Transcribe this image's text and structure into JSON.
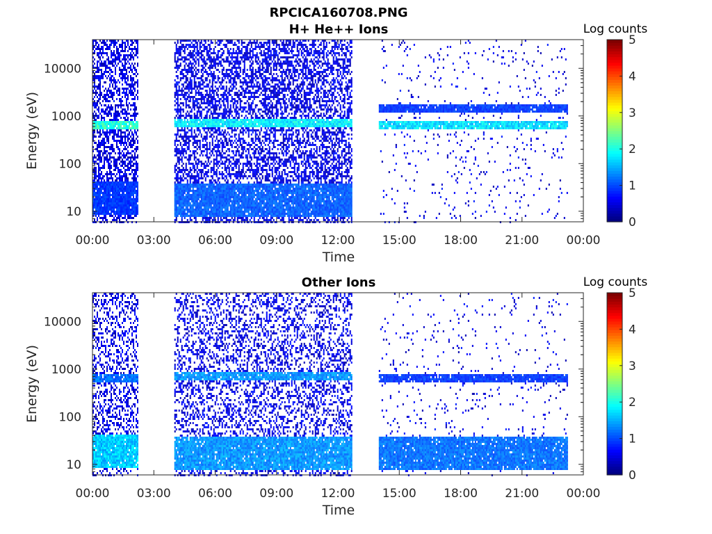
{
  "figure": {
    "title": "RPCICA160708.PNG"
  },
  "chart_data": [
    {
      "type": "heatmap",
      "title": "H+ He++ Ions",
      "xlabel": "Time",
      "ylabel": "Energy (eV)",
      "x_ticks": [
        "00:00",
        "03:00",
        "06:00",
        "09:00",
        "12:00",
        "15:00",
        "18:00",
        "21:00",
        "00:00"
      ],
      "x_range_hours": [
        0,
        24
      ],
      "y_scale": "log",
      "y_ticks": [
        {
          "value": 10,
          "label": "10"
        },
        {
          "value": 100,
          "label": "100"
        },
        {
          "value": 1000,
          "label": "1000"
        },
        {
          "value": 10000,
          "label": "10000"
        }
      ],
      "y_range": [
        6,
        40000
      ],
      "colorbar": {
        "label": "Log counts",
        "range": [
          0,
          5
        ],
        "ticks": [
          "0",
          "1",
          "2",
          "3",
          "4",
          "5"
        ],
        "colormap": "jet"
      },
      "data_intervals_hours": [
        [
          0.0,
          2.2
        ],
        [
          4.0,
          12.7
        ],
        [
          14.0,
          23.2
        ]
      ],
      "features": [
        {
          "from": 0.0,
          "to": 2.2,
          "energy_eV": 700,
          "log_counts": 2.3,
          "kind": "band"
        },
        {
          "from": 4.0,
          "to": 12.7,
          "energy_eV": 720,
          "log_counts": 2.0,
          "kind": "band"
        },
        {
          "from": 14.0,
          "to": 23.2,
          "energy_eV": 700,
          "log_counts": 1.9,
          "kind": "band"
        },
        {
          "from": 14.0,
          "to": 23.2,
          "energy_eV": 1500,
          "log_counts": 1.0,
          "kind": "band"
        },
        {
          "from": 0.0,
          "to": 2.2,
          "energy_eV": 20,
          "log_counts": 1.0,
          "kind": "low-energy"
        },
        {
          "from": 4.0,
          "to": 12.7,
          "energy_eV": 18,
          "log_counts": 1.2,
          "kind": "low-energy"
        }
      ]
    },
    {
      "type": "heatmap",
      "title": "Other Ions",
      "xlabel": "Time",
      "ylabel": "Energy (eV)",
      "x_ticks": [
        "00:00",
        "03:00",
        "06:00",
        "09:00",
        "12:00",
        "15:00",
        "18:00",
        "21:00",
        "00:00"
      ],
      "x_range_hours": [
        0,
        24
      ],
      "y_scale": "log",
      "y_ticks": [
        {
          "value": 10,
          "label": "10"
        },
        {
          "value": 100,
          "label": "100"
        },
        {
          "value": 1000,
          "label": "1000"
        },
        {
          "value": 10000,
          "label": "10000"
        }
      ],
      "y_range": [
        6,
        40000
      ],
      "colorbar": {
        "label": "Log counts",
        "range": [
          0,
          5
        ],
        "ticks": [
          "0",
          "1",
          "2",
          "3",
          "4",
          "5"
        ],
        "colormap": "jet"
      },
      "data_intervals_hours": [
        [
          0.0,
          2.2
        ],
        [
          4.0,
          12.7
        ],
        [
          14.0,
          23.2
        ]
      ],
      "features": [
        {
          "from": 0.0,
          "to": 2.2,
          "energy_eV": 680,
          "log_counts": 1.3,
          "kind": "band"
        },
        {
          "from": 4.0,
          "to": 12.7,
          "energy_eV": 720,
          "log_counts": 1.5,
          "kind": "band"
        },
        {
          "from": 14.0,
          "to": 23.2,
          "energy_eV": 700,
          "log_counts": 1.0,
          "kind": "band"
        },
        {
          "from": 0.0,
          "to": 2.2,
          "energy_eV": 20,
          "log_counts": 1.8,
          "kind": "low-energy"
        },
        {
          "from": 4.0,
          "to": 12.7,
          "energy_eV": 18,
          "log_counts": 1.5,
          "kind": "low-energy"
        },
        {
          "from": 14.0,
          "to": 23.2,
          "energy_eV": 18,
          "log_counts": 1.3,
          "kind": "low-energy"
        }
      ]
    }
  ]
}
